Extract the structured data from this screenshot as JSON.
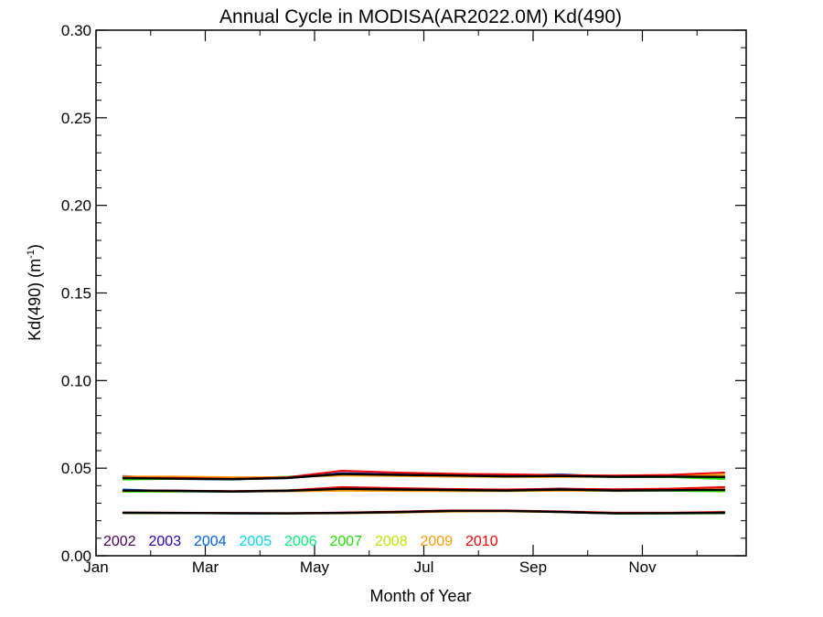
{
  "chart_data": {
    "type": "line",
    "title": "Annual Cycle in MODISA(AR2022.0M) Kd(490)",
    "xlabel": "Month of Year",
    "ylabel_main": "Kd(490) (m",
    "ylabel_sup": "-1",
    "ylabel_close": ")",
    "xlim": [
      1,
      12.9
    ],
    "ylim": [
      0,
      0.3
    ],
    "grid": false,
    "x_ticks": [
      {
        "value": 1,
        "label": "Jan"
      },
      {
        "value": 3,
        "label": "Mar"
      },
      {
        "value": 5,
        "label": "May"
      },
      {
        "value": 7,
        "label": "Jul"
      },
      {
        "value": 9,
        "label": "Sep"
      },
      {
        "value": 11,
        "label": "Nov"
      }
    ],
    "y_ticks": [
      {
        "value": 0.0,
        "label": "0.00"
      },
      {
        "value": 0.05,
        "label": "0.05"
      },
      {
        "value": 0.1,
        "label": "0.10"
      },
      {
        "value": 0.15,
        "label": "0.15"
      },
      {
        "value": 0.2,
        "label": "0.20"
      },
      {
        "value": 0.25,
        "label": "0.25"
      },
      {
        "value": 0.3,
        "label": "0.30"
      }
    ],
    "x": [
      1.5,
      2.5,
      3.5,
      4.5,
      5.5,
      6.5,
      7.5,
      8.5,
      9.5,
      10.5,
      11.5,
      12.5
    ],
    "legend_placement": "bottom-left",
    "series": [
      {
        "name": "2002",
        "color": "#4b0055",
        "groups": [
          [
            0.0445,
            0.0443,
            0.0437,
            0.0443,
            0.0468,
            0.0462,
            0.0458,
            0.0452,
            0.0455,
            0.0452,
            0.0452,
            0.0458
          ],
          [
            0.0372,
            0.0372,
            0.0368,
            0.0372,
            0.0382,
            0.0378,
            0.0375,
            0.0373,
            0.0378,
            0.0373,
            0.0375,
            0.038
          ],
          [
            0.0245,
            0.0245,
            0.0243,
            0.0242,
            0.0245,
            0.025,
            0.0257,
            0.0257,
            0.025,
            0.0242,
            0.0243,
            0.0245
          ]
        ]
      },
      {
        "name": "2003",
        "color": "#2a00b8",
        "groups": [
          [
            0.0448,
            0.044,
            0.0436,
            0.0445,
            0.0472,
            0.0465,
            0.046,
            0.0455,
            0.0458,
            0.045,
            0.045,
            0.0455
          ],
          [
            0.0375,
            0.037,
            0.0366,
            0.037,
            0.0385,
            0.038,
            0.0376,
            0.0372,
            0.038,
            0.0372,
            0.0374,
            0.0378
          ],
          [
            0.0246,
            0.0244,
            0.0242,
            0.0241,
            0.0246,
            0.0251,
            0.0258,
            0.0256,
            0.0249,
            0.0241,
            0.0242,
            0.0246
          ]
        ]
      },
      {
        "name": "2004",
        "color": "#0060e0",
        "groups": [
          [
            0.0455,
            0.0438,
            0.0435,
            0.0448,
            0.047,
            0.0463,
            0.0459,
            0.0456,
            0.0465,
            0.0452,
            0.0453,
            0.045
          ],
          [
            0.0378,
            0.0368,
            0.0365,
            0.0371,
            0.0388,
            0.0379,
            0.0374,
            0.0371,
            0.0384,
            0.0371,
            0.0373,
            0.0374
          ],
          [
            0.0244,
            0.0244,
            0.0242,
            0.0241,
            0.0245,
            0.025,
            0.0256,
            0.0256,
            0.0251,
            0.0242,
            0.0242,
            0.0244
          ]
        ]
      },
      {
        "name": "2005",
        "color": "#00d8e8",
        "groups": [
          [
            0.044,
            0.0442,
            0.0438,
            0.045,
            0.0466,
            0.046,
            0.0457,
            0.0453,
            0.0458,
            0.0451,
            0.0451,
            0.0448
          ],
          [
            0.037,
            0.0371,
            0.0367,
            0.0373,
            0.0381,
            0.0377,
            0.0374,
            0.0372,
            0.0379,
            0.0372,
            0.0374,
            0.0376
          ],
          [
            0.0245,
            0.0245,
            0.0243,
            0.0242,
            0.0244,
            0.0249,
            0.0256,
            0.0257,
            0.025,
            0.0243,
            0.0243,
            0.0245
          ]
        ]
      },
      {
        "name": "2006",
        "color": "#00f07a",
        "groups": [
          [
            0.0438,
            0.0441,
            0.044,
            0.0452,
            0.0465,
            0.0459,
            0.0456,
            0.0452,
            0.0454,
            0.045,
            0.045,
            0.044
          ],
          [
            0.0368,
            0.0369,
            0.0368,
            0.0374,
            0.038,
            0.0376,
            0.0373,
            0.0371,
            0.0377,
            0.0371,
            0.0372,
            0.037
          ],
          [
            0.0244,
            0.0244,
            0.0243,
            0.0242,
            0.0244,
            0.0249,
            0.0256,
            0.0256,
            0.025,
            0.0242,
            0.0242,
            0.0243
          ]
        ]
      },
      {
        "name": "2007",
        "color": "#20e000",
        "groups": [
          [
            0.0435,
            0.044,
            0.0439,
            0.0448,
            0.0463,
            0.0458,
            0.0455,
            0.0451,
            0.0453,
            0.0449,
            0.0449,
            0.0438
          ],
          [
            0.0366,
            0.0367,
            0.0367,
            0.0372,
            0.0378,
            0.0375,
            0.0372,
            0.037,
            0.0375,
            0.037,
            0.0371,
            0.0368
          ],
          [
            0.0243,
            0.0243,
            0.0242,
            0.0241,
            0.0243,
            0.0248,
            0.0255,
            0.0255,
            0.0249,
            0.0241,
            0.0241,
            0.0242
          ]
        ]
      },
      {
        "name": "2008",
        "color": "#b8e800",
        "groups": [
          [
            0.045,
            0.0448,
            0.0444,
            0.045,
            0.046,
            0.0457,
            0.0455,
            0.0452,
            0.0452,
            0.045,
            0.0451,
            0.0455
          ],
          [
            0.037,
            0.037,
            0.0368,
            0.0371,
            0.0376,
            0.0374,
            0.0372,
            0.0371,
            0.0374,
            0.0371,
            0.0373,
            0.0377
          ],
          [
            0.0244,
            0.0244,
            0.0243,
            0.0242,
            0.0243,
            0.0248,
            0.0254,
            0.0255,
            0.025,
            0.0242,
            0.0242,
            0.0244
          ]
        ]
      },
      {
        "name": "2009",
        "color": "#ff9a00",
        "groups": [
          [
            0.0452,
            0.0452,
            0.0448,
            0.0448,
            0.0458,
            0.0455,
            0.0452,
            0.045,
            0.045,
            0.0452,
            0.0455,
            0.0462
          ],
          [
            0.0371,
            0.037,
            0.0367,
            0.0368,
            0.0371,
            0.037,
            0.0369,
            0.0369,
            0.0371,
            0.0372,
            0.0375,
            0.0383
          ],
          [
            0.0245,
            0.0245,
            0.0243,
            0.0241,
            0.0242,
            0.0246,
            0.0252,
            0.0253,
            0.0249,
            0.0243,
            0.0244,
            0.0247
          ]
        ]
      },
      {
        "name": "2010",
        "color": "#ee0000",
        "groups": [
          [
            0.0446,
            0.0444,
            0.044,
            0.0447,
            0.0485,
            0.0475,
            0.0468,
            0.0465,
            0.046,
            0.0458,
            0.0462,
            0.0475
          ],
          [
            0.0373,
            0.0372,
            0.0369,
            0.0373,
            0.0392,
            0.0386,
            0.0381,
            0.0378,
            0.0383,
            0.038,
            0.0383,
            0.0392
          ],
          [
            0.0247,
            0.0246,
            0.0244,
            0.0243,
            0.0247,
            0.0252,
            0.0259,
            0.0259,
            0.0253,
            0.0246,
            0.0246,
            0.025
          ]
        ]
      },
      {
        "name": "",
        "color": "#000000",
        "groups": [
          [
            0.0443,
            0.044,
            0.0437,
            0.0444,
            0.0467,
            0.0462,
            0.0458,
            0.0453,
            0.0455,
            0.0451,
            0.0452,
            0.045
          ],
          [
            0.0372,
            0.037,
            0.0367,
            0.0371,
            0.0382,
            0.0378,
            0.0375,
            0.0372,
            0.0378,
            0.0372,
            0.0374,
            0.0376
          ],
          [
            0.0245,
            0.0244,
            0.0243,
            0.0242,
            0.0244,
            0.0249,
            0.0256,
            0.0256,
            0.025,
            0.0242,
            0.0243,
            0.0245
          ]
        ]
      }
    ]
  }
}
